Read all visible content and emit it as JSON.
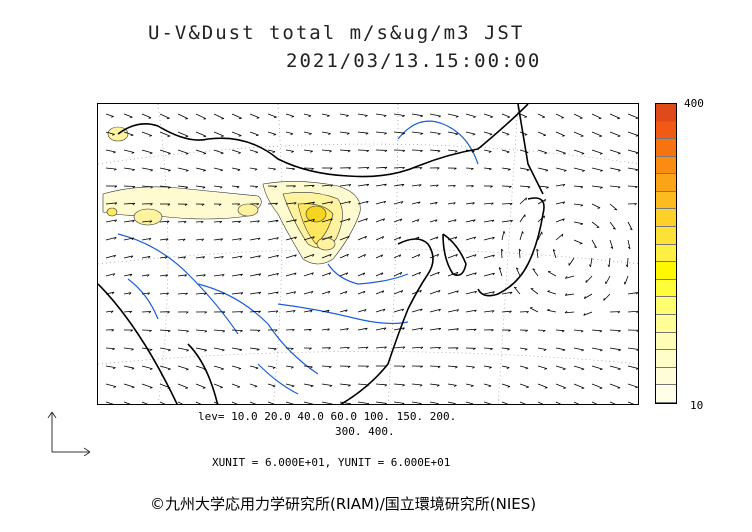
{
  "title": {
    "line1": "U-V&Dust total m/s&ug/m3 JST",
    "line2": "2021/03/13.15:00:00"
  },
  "colorbar": {
    "max_label": "400",
    "min_label": "10",
    "colors": [
      "#e04a1a",
      "#f05a14",
      "#f8730f",
      "#fb8c12",
      "#fca417",
      "#fdbb1f",
      "#fdd02a",
      "#fee137",
      "#ffef45",
      "#fff800",
      "#fffc3a",
      "#fffd70",
      "#fffd95",
      "#fffdb5",
      "#fffdc8",
      "#fffed8",
      "#fffee6"
    ]
  },
  "levels": {
    "line1": "lev= 10.0 20.0 40.0 60.0 100. 150. 200.",
    "line2": "300. 400."
  },
  "units": "XUNIT = 6.000E+01, YUNIT = 6.000E+01",
  "copyright": "©九州大学応用力学研究所(RIAM)/国立環境研究所(NIES)",
  "map": {
    "vector_color": "#000000",
    "coast_color": "#000000",
    "river_color": "#1a5fd6",
    "grid_color": "#888888",
    "dust_colors": [
      "#fffbd0",
      "#fff3a0",
      "#ffe860",
      "#f5d520"
    ]
  }
}
